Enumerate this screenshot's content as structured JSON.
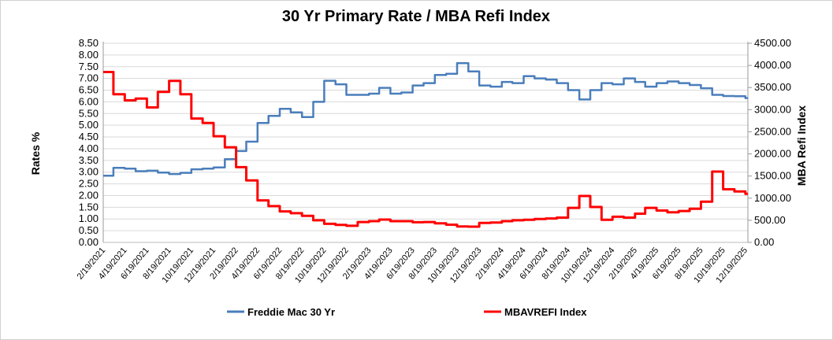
{
  "chart_data": {
    "type": "line",
    "title": "30 Yr Primary Rate / MBA Refi Index",
    "ylabel": "Rates %",
    "y2label": "MBA Refi Index",
    "ylim": [
      0,
      8.5
    ],
    "y2lim": [
      0,
      4500
    ],
    "yticks": [
      "0.00",
      "0.50",
      "1.00",
      "1.50",
      "2.00",
      "2.50",
      "3.00",
      "3.50",
      "4.00",
      "4.50",
      "5.00",
      "5.50",
      "6.00",
      "6.50",
      "7.00",
      "7.50",
      "8.00",
      "8.50"
    ],
    "y2ticks": [
      "0.00",
      "500.00",
      "1000.00",
      "1500.00",
      "2000.00",
      "2500.00",
      "3000.00",
      "3500.00",
      "4000.00",
      "4500.00"
    ],
    "xlim": [
      "2021-02-19",
      "2025-12-26"
    ],
    "xticks": [
      "2/19/2021",
      "4/19/2021",
      "6/19/2021",
      "8/19/2021",
      "10/19/2021",
      "12/19/2021",
      "2/19/2022",
      "4/19/2022",
      "6/19/2022",
      "8/19/2022",
      "10/19/2022",
      "12/19/2022",
      "2/19/2023",
      "4/19/2023",
      "6/19/2023",
      "8/19/2023",
      "10/19/2023",
      "12/19/2023",
      "2/19/2024",
      "4/19/2024",
      "6/19/2024",
      "8/19/2024",
      "10/19/2024",
      "12/19/2024",
      "2/19/2025",
      "4/19/2025",
      "6/19/2025",
      "8/19/2025",
      "10/19/2025",
      "12/19/2025"
    ],
    "grid": true,
    "legend_position": "bottom",
    "x": [
      "2021-02-19",
      "2021-03-19",
      "2021-04-19",
      "2021-05-19",
      "2021-06-19",
      "2021-07-19",
      "2021-08-19",
      "2021-09-19",
      "2021-10-19",
      "2021-11-19",
      "2021-12-19",
      "2022-01-19",
      "2022-02-19",
      "2022-03-19",
      "2022-04-19",
      "2022-05-19",
      "2022-06-19",
      "2022-07-19",
      "2022-08-19",
      "2022-09-19",
      "2022-10-19",
      "2022-11-19",
      "2022-12-19",
      "2023-01-19",
      "2023-02-19",
      "2023-03-19",
      "2023-04-19",
      "2023-05-19",
      "2023-06-19",
      "2023-07-19",
      "2023-08-19",
      "2023-09-19",
      "2023-10-19",
      "2023-11-19",
      "2023-12-19",
      "2024-01-19",
      "2024-02-19",
      "2024-03-19",
      "2024-04-19",
      "2024-05-19",
      "2024-06-19",
      "2024-07-19",
      "2024-08-19",
      "2024-09-19",
      "2024-10-19",
      "2024-11-19",
      "2024-12-19",
      "2025-01-19",
      "2025-02-19",
      "2025-03-19",
      "2025-04-19",
      "2025-05-19",
      "2025-06-19",
      "2025-07-19",
      "2025-08-19",
      "2025-09-19",
      "2025-10-19",
      "2025-11-19",
      "2025-12-19"
    ],
    "series": [
      {
        "name": "Freddie Mac 30 Yr",
        "axis": "left",
        "color": "#4a7ebb",
        "values": [
          2.85,
          3.18,
          3.15,
          3.04,
          3.06,
          2.98,
          2.92,
          2.97,
          3.12,
          3.15,
          3.2,
          3.55,
          3.9,
          4.3,
          5.1,
          5.4,
          5.7,
          5.55,
          5.35,
          6.0,
          6.9,
          6.75,
          6.3,
          6.3,
          6.35,
          6.6,
          6.35,
          6.4,
          6.7,
          6.8,
          7.15,
          7.2,
          7.65,
          7.3,
          6.7,
          6.65,
          6.85,
          6.8,
          7.1,
          7.0,
          6.95,
          6.8,
          6.5,
          6.1,
          6.5,
          6.8,
          6.75,
          7.0,
          6.85,
          6.65,
          6.8,
          6.87,
          6.8,
          6.72,
          6.58,
          6.3,
          6.25,
          6.24,
          6.16
        ]
      },
      {
        "name": "MBAVREFI Index",
        "axis": "right",
        "color": "#ff0000",
        "values": [
          3850,
          3350,
          3210,
          3250,
          3050,
          3400,
          3650,
          3350,
          2800,
          2700,
          2400,
          2150,
          1700,
          1400,
          950,
          820,
          700,
          660,
          600,
          500,
          420,
          395,
          375,
          460,
          480,
          515,
          480,
          480,
          455,
          460,
          430,
          400,
          360,
          355,
          440,
          450,
          480,
          500,
          510,
          530,
          540,
          560,
          780,
          1050,
          800,
          510,
          580,
          560,
          650,
          780,
          720,
          680,
          710,
          760,
          920,
          1600,
          1200,
          1150,
          1100
        ]
      }
    ]
  }
}
